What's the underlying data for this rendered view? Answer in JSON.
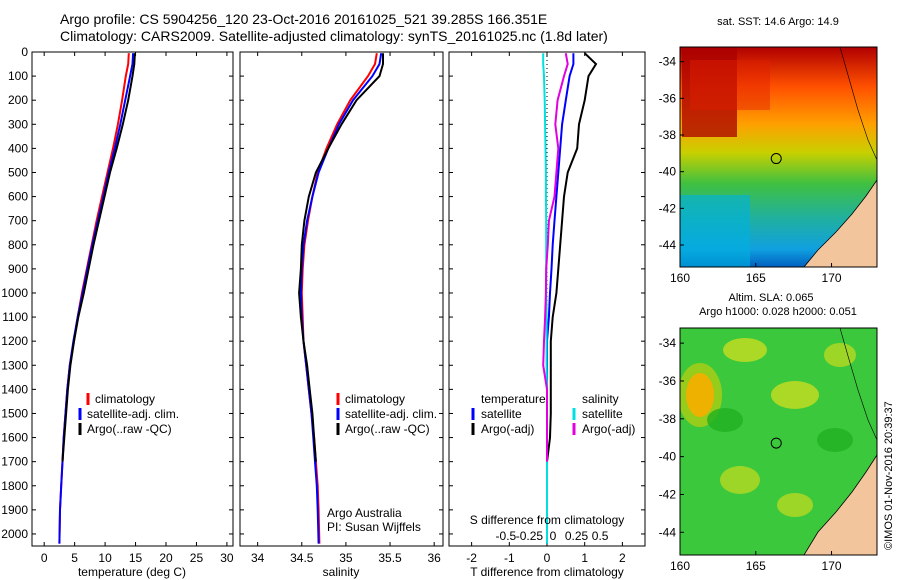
{
  "titles": {
    "line1": "Argo profile: CS 5904256_120 23-Oct-2016 20161025_521 39.285S 166.351E",
    "line2": "Climatology: CARS2009. Satellite-adjusted climatology: synTS_20161025.nc (1.8d later)"
  },
  "depth_ticks": [
    0,
    100,
    200,
    300,
    400,
    500,
    600,
    700,
    800,
    900,
    1000,
    1100,
    1200,
    1300,
    1400,
    1500,
    1600,
    1700,
    1800,
    1900,
    2000
  ],
  "depth_range": [
    0,
    2050
  ],
  "colors": {
    "climatology": "#ff0000",
    "satellite": "#0000ff",
    "argo": "#000000",
    "salinity_sat": "#00e0e0",
    "salinity_argo": "#e000e0"
  },
  "chart_data": [
    {
      "type": "line",
      "panel": "temperature",
      "xlabel": "temperature (deg C)",
      "xlim": [
        -2,
        31
      ],
      "xticks": [
        0,
        5,
        10,
        15,
        20,
        25,
        30
      ],
      "ylim": [
        0,
        2050
      ],
      "y_inverted": true,
      "legend": [
        "climatology",
        "satellite-adj. clim.",
        "Argo(..raw -QC)"
      ],
      "legend_position": "lower-center",
      "series": [
        {
          "name": "climatology",
          "color": "#ff0000",
          "x": [
            13.9,
            13.8,
            13.4,
            12.8,
            12.1,
            11.3,
            10.4,
            9.5,
            8.6,
            7.8,
            7.0,
            6.2,
            5.5,
            4.9,
            4.2,
            3.8,
            3.5,
            3.2,
            3.0,
            2.8,
            2.6,
            2.5
          ],
          "y": [
            5,
            50,
            100,
            200,
            300,
            400,
            500,
            600,
            700,
            800,
            900,
            1000,
            1100,
            1200,
            1300,
            1400,
            1500,
            1600,
            1700,
            1800,
            1900,
            2040
          ]
        },
        {
          "name": "satellite-adj. clim.",
          "color": "#0000ff",
          "x": [
            14.6,
            14.5,
            14.1,
            13.3,
            12.5,
            11.6,
            10.6,
            9.7,
            8.8,
            7.9,
            7.1,
            6.3,
            5.5,
            4.8,
            4.2,
            3.8,
            3.5,
            3.2,
            3.0,
            2.8,
            2.6,
            2.5
          ],
          "y": [
            5,
            50,
            100,
            200,
            300,
            400,
            500,
            600,
            700,
            800,
            900,
            1000,
            1100,
            1200,
            1300,
            1400,
            1500,
            1600,
            1700,
            1800,
            1900,
            2040
          ]
        },
        {
          "name": "Argo(..raw -QC)",
          "color": "#000000",
          "x": [
            14.9,
            14.8,
            14.5,
            13.8,
            12.9,
            11.9,
            10.8,
            9.9,
            9.0,
            8.1,
            7.3,
            6.5,
            5.6,
            4.9,
            4.3,
            3.9,
            3.6,
            3.3,
            3.0
          ],
          "y": [
            5,
            50,
            100,
            200,
            300,
            400,
            500,
            600,
            700,
            800,
            900,
            1000,
            1100,
            1200,
            1300,
            1400,
            1500,
            1600,
            1700
          ]
        }
      ]
    },
    {
      "type": "line",
      "panel": "salinity",
      "xlabel": "salinity",
      "xlim": [
        33.8,
        36.1
      ],
      "xticks": [
        34,
        34.5,
        35,
        35.5,
        36
      ],
      "ylim": [
        0,
        2050
      ],
      "y_inverted": true,
      "legend": [
        "climatology",
        "satellite-adj. clim.",
        "Argo(..raw -QC)"
      ],
      "legend_position": "lower-center",
      "annotations": [
        "Argo Australia",
        "PI: Susan Wijffels"
      ],
      "series": [
        {
          "name": "climatology",
          "color": "#ff0000",
          "x": [
            35.35,
            35.33,
            35.25,
            35.05,
            34.9,
            34.78,
            34.68,
            34.62,
            34.57,
            34.53,
            34.51,
            34.5,
            34.51,
            34.52,
            34.55,
            34.58,
            34.61,
            34.64,
            34.66,
            34.68,
            34.69,
            34.7
          ],
          "y": [
            5,
            50,
            100,
            200,
            300,
            400,
            500,
            600,
            700,
            800,
            900,
            1000,
            1100,
            1200,
            1300,
            1400,
            1500,
            1600,
            1700,
            1800,
            1900,
            2040
          ]
        },
        {
          "name": "satellite-adj. clim.",
          "color": "#0000ff",
          "x": [
            35.4,
            35.38,
            35.3,
            35.08,
            34.92,
            34.8,
            34.69,
            34.62,
            34.56,
            34.52,
            34.5,
            34.49,
            34.5,
            34.52,
            34.55,
            34.58,
            34.61,
            34.63,
            34.65,
            34.67,
            34.68,
            34.69
          ],
          "y": [
            5,
            50,
            100,
            200,
            300,
            400,
            500,
            600,
            700,
            800,
            900,
            1000,
            1100,
            1200,
            1300,
            1400,
            1500,
            1600,
            1700,
            1800,
            1900,
            2040
          ]
        },
        {
          "name": "Argo(..raw -QC)",
          "color": "#000000",
          "x": [
            35.42,
            35.42,
            35.38,
            35.12,
            34.95,
            34.8,
            34.66,
            34.58,
            34.53,
            34.5,
            34.49,
            34.47,
            34.49,
            34.52,
            34.56,
            34.59,
            34.62,
            34.64,
            34.66
          ],
          "y": [
            5,
            50,
            100,
            200,
            300,
            400,
            500,
            600,
            700,
            800,
            900,
            1000,
            1100,
            1200,
            1300,
            1400,
            1500,
            1600,
            1700
          ]
        }
      ]
    },
    {
      "type": "line",
      "panel": "difference",
      "xlabel": "T difference from climatology",
      "xlabel_top": "S difference from climatology",
      "xlim": [
        -2.6,
        2.6
      ],
      "xticks": [
        -2,
        -1,
        0,
        1,
        2
      ],
      "xticks_top": [
        "-0.5",
        "-0.25",
        "0",
        "0.25",
        "0.5"
      ],
      "ylim": [
        0,
        2050
      ],
      "y_inverted": true,
      "legend": {
        "temperature": [
          "satellite",
          "Argo(-adj)"
        ],
        "salinity": [
          "satellite",
          "Argo(-adj)"
        ]
      },
      "legend_position": "lower-center",
      "series": [
        {
          "name": "T satellite",
          "color": "#0000ff",
          "x": [
            0.7,
            0.7,
            0.6,
            0.5,
            0.4,
            0.35,
            0.3,
            0.25,
            0.2,
            0.15,
            0.12,
            0.08,
            0.05,
            0.0,
            0.0,
            0.0,
            0.0,
            0.0,
            0.0,
            0.0,
            0.0,
            0.0
          ],
          "y": [
            5,
            50,
            100,
            200,
            300,
            400,
            500,
            600,
            700,
            800,
            900,
            1000,
            1100,
            1200,
            1300,
            1400,
            1500,
            1600,
            1700,
            1800,
            1900,
            2040
          ]
        },
        {
          "name": "T Argo(-adj)",
          "color": "#000000",
          "x": [
            1.0,
            1.3,
            1.1,
            1.0,
            0.85,
            0.8,
            0.55,
            0.45,
            0.4,
            0.35,
            0.3,
            0.25,
            0.15,
            0.1,
            0.1,
            0.1,
            0.1,
            0.08,
            0.0
          ],
          "y": [
            5,
            50,
            100,
            200,
            300,
            400,
            500,
            600,
            700,
            800,
            900,
            1000,
            1100,
            1200,
            1300,
            1400,
            1500,
            1600,
            1700
          ]
        },
        {
          "name": "S satellite",
          "color": "#00e0e0",
          "x": [
            -0.1,
            -0.1,
            -0.08,
            -0.06,
            -0.05,
            -0.04,
            -0.03,
            -0.03,
            -0.02,
            -0.02,
            -0.02,
            -0.02,
            -0.01,
            -0.01,
            -0.01,
            0.0,
            0.0,
            0.0,
            0.0,
            0.0,
            0.0,
            0.0
          ],
          "y": [
            5,
            50,
            100,
            200,
            300,
            400,
            500,
            600,
            700,
            800,
            900,
            1000,
            1100,
            1200,
            1300,
            1400,
            1500,
            1600,
            1700,
            1800,
            1900,
            2040
          ]
        },
        {
          "name": "S Argo(-adj)",
          "color": "#e000e0",
          "x": [
            0.5,
            0.55,
            0.45,
            0.28,
            0.22,
            0.3,
            0.25,
            0.2,
            0.05,
            0.02,
            -0.02,
            -0.03,
            -0.05,
            -0.08,
            -0.1,
            0.0,
            0.0,
            0.0,
            0.0
          ],
          "y": [
            5,
            50,
            100,
            200,
            300,
            400,
            500,
            600,
            700,
            800,
            900,
            1000,
            1100,
            1200,
            1300,
            1400,
            1500,
            1600,
            1700
          ]
        }
      ]
    },
    {
      "type": "heatmap",
      "panel": "sst-map",
      "title": "sat. SST: 14.6 Argo: 14.9",
      "xlim": [
        160,
        173
      ],
      "ylim": [
        -45.2,
        -33.2
      ],
      "xticks": [
        160,
        165,
        170
      ],
      "yticks": [
        -34,
        -36,
        -38,
        -40,
        -42,
        -44
      ],
      "marker": {
        "lon": 166.351,
        "lat": -39.285
      }
    },
    {
      "type": "heatmap",
      "panel": "sla-map",
      "title": "Altim. SLA: 0.065",
      "subtitle": "Argo h1000: 0.028 h2000: 0.051",
      "xlim": [
        160,
        173
      ],
      "ylim": [
        -45.2,
        -33.2
      ],
      "xticks": [
        160,
        165,
        170
      ],
      "yticks": [
        -34,
        -36,
        -38,
        -40,
        -42,
        -44
      ],
      "marker": {
        "lon": 166.351,
        "lat": -39.285
      }
    }
  ],
  "footer": {
    "timestamp": "©IMOS 01-Nov-2016 20:39:37"
  }
}
